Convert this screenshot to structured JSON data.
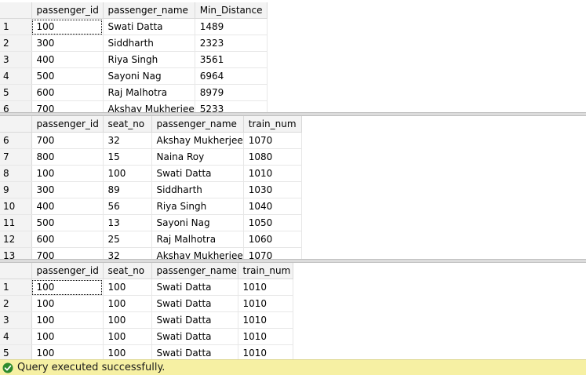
{
  "result_sets": [
    {
      "columns": [
        "passenger_id",
        "passenger_name",
        "Min_Distance"
      ],
      "rows": [
        {
          "num": "1",
          "cells": [
            "100",
            "Swati Datta",
            "1489"
          ]
        },
        {
          "num": "2",
          "cells": [
            "300",
            "Siddharth",
            "2323"
          ]
        },
        {
          "num": "3",
          "cells": [
            "400",
            "Riya Singh",
            "3561"
          ]
        },
        {
          "num": "4",
          "cells": [
            "500",
            "Sayoni Nag",
            "6964"
          ]
        },
        {
          "num": "5",
          "cells": [
            "600",
            "Raj Malhotra",
            "8979"
          ]
        },
        {
          "num": "6",
          "cells": [
            "700",
            "Akshay Mukherjee",
            "5233"
          ]
        }
      ]
    },
    {
      "columns": [
        "passenger_id",
        "seat_no",
        "passenger_name",
        "train_num"
      ],
      "rows": [
        {
          "num": "6",
          "cells": [
            "700",
            "32",
            "Akshay Mukherjee",
            "1070"
          ]
        },
        {
          "num": "7",
          "cells": [
            "800",
            "15",
            "Naina Roy",
            "1080"
          ]
        },
        {
          "num": "8",
          "cells": [
            "100",
            "100",
            "Swati Datta",
            "1010"
          ]
        },
        {
          "num": "9",
          "cells": [
            "300",
            "89",
            "Siddharth",
            "1030"
          ]
        },
        {
          "num": "10",
          "cells": [
            "400",
            "56",
            "Riya Singh",
            "1040"
          ]
        },
        {
          "num": "11",
          "cells": [
            "500",
            "13",
            "Sayoni Nag",
            "1050"
          ]
        },
        {
          "num": "12",
          "cells": [
            "600",
            "25",
            "Raj Malhotra",
            "1060"
          ]
        },
        {
          "num": "13",
          "cells": [
            "700",
            "32",
            "Akshay Mukherjee",
            "1070"
          ]
        }
      ]
    },
    {
      "columns": [
        "passenger_id",
        "seat_no",
        "passenger_name",
        "train_num"
      ],
      "rows": [
        {
          "num": "1",
          "cells": [
            "100",
            "100",
            "Swati Datta",
            "1010"
          ]
        },
        {
          "num": "2",
          "cells": [
            "100",
            "100",
            "Swati Datta",
            "1010"
          ]
        },
        {
          "num": "3",
          "cells": [
            "100",
            "100",
            "Swati Datta",
            "1010"
          ]
        },
        {
          "num": "4",
          "cells": [
            "100",
            "100",
            "Swati Datta",
            "1010"
          ]
        },
        {
          "num": "5",
          "cells": [
            "100",
            "100",
            "Swati Datta",
            "1010"
          ]
        }
      ]
    }
  ],
  "status": {
    "text": "Query executed successfully.",
    "icon": "success-check-icon",
    "bar_color": "#f6f0a3",
    "icon_color": "#2e8b2e"
  }
}
